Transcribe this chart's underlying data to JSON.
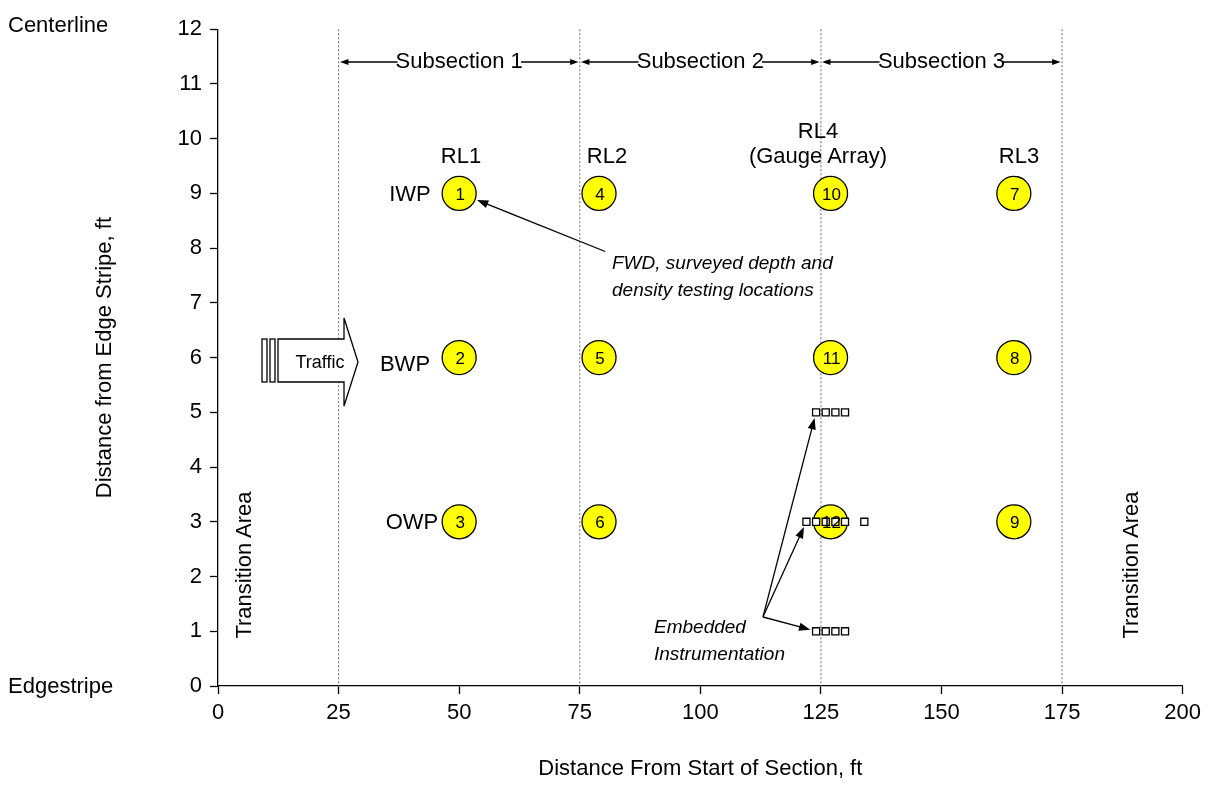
{
  "chart_data": {
    "type": "scatter",
    "xlabel": "Distance From Start of Section, ft",
    "ylabel": "Distance from Edge Stripe, ft",
    "xlim": [
      0,
      200
    ],
    "xticks": [
      0,
      25,
      50,
      75,
      100,
      125,
      150,
      175,
      200
    ],
    "ylim": [
      0,
      12
    ],
    "yticks": [
      0,
      1,
      2,
      3,
      4,
      5,
      6,
      7,
      8,
      9,
      10,
      11,
      12
    ],
    "grid": false,
    "legend": false,
    "series": [
      {
        "color": "#ffff00",
        "marker": "circle",
        "x": [
          50,
          50,
          50,
          79,
          79,
          79,
          127,
          127,
          127,
          165,
          165,
          165
        ],
        "values": [
          9,
          6,
          3,
          9,
          6,
          3,
          9,
          6,
          3,
          9,
          6,
          3
        ]
      },
      {
        "color": "#ffffff",
        "marker": "square",
        "x": [
          124,
          126,
          128,
          130
        ],
        "values": [
          5,
          5,
          5,
          5
        ]
      },
      {
        "color": "#ffffff",
        "marker": "square",
        "x": [
          122,
          124,
          126,
          128,
          130,
          134
        ],
        "values": [
          3,
          3,
          3,
          3,
          3,
          3
        ]
      },
      {
        "color": "#ffffff",
        "marker": "square",
        "x": [
          124,
          126,
          128,
          130
        ],
        "values": [
          1,
          1,
          1,
          1
        ]
      }
    ],
    "ref_lines": [
      {
        "axis": "x",
        "value": 25,
        "color": "#808080",
        "line_style": "dotted"
      },
      {
        "axis": "x",
        "value": 75,
        "color": "#808080",
        "line_style": "dotted"
      },
      {
        "axis": "x",
        "value": 125,
        "color": "#808080",
        "line_style": "dotted"
      },
      {
        "axis": "x",
        "value": 175,
        "color": "#808080",
        "line_style": "dotted"
      }
    ],
    "annotations": [
      "Centerline",
      "Edgestripe",
      "Transition Area",
      "Transition Area",
      "Traffic",
      "FWD, surveyed depth and\ndensity testing locations",
      "Embedded\nInstrumentation",
      "Subsection 1",
      "Subsection 2",
      "Subsection 3",
      "RL1",
      "RL2",
      "RL4\n(Gauge Array)",
      "RL3",
      "IWP",
      "BWP",
      "OWP",
      {
        "text": "1",
        "x": 50,
        "y": 9
      },
      {
        "text": "2",
        "x": 50,
        "y": 6
      },
      {
        "text": "3",
        "x": 50,
        "y": 3
      },
      {
        "text": "4",
        "x": 79,
        "y": 9
      },
      {
        "text": "5",
        "x": 79,
        "y": 6
      },
      {
        "text": "6",
        "x": 79,
        "y": 3
      },
      {
        "text": "10",
        "x": 127,
        "y": 9
      },
      {
        "text": "11",
        "x": 127,
        "y": 6
      },
      {
        "text": "12",
        "x": 127,
        "y": 3
      },
      {
        "text": "7",
        "x": 165,
        "y": 9
      },
      {
        "text": "8",
        "x": 165,
        "y": 6
      },
      {
        "text": "9",
        "x": 165,
        "y": 3
      }
    ]
  }
}
